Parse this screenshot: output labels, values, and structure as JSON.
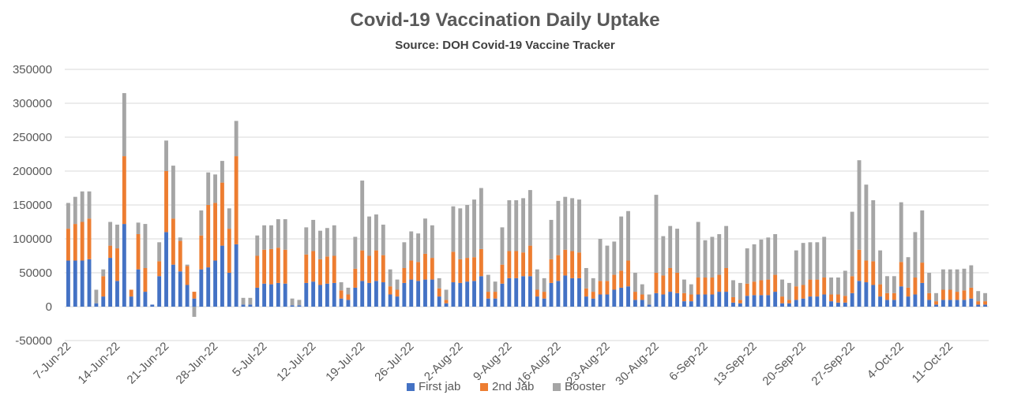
{
  "chart_data": {
    "type": "bar",
    "stacked": true,
    "title": "Covid-19 Vaccination Daily Uptake",
    "subtitle": "Source: DOH Covid-19 Vaccine Tracker",
    "xlabel": "",
    "ylabel": "",
    "ylim": [
      -50000,
      350000
    ],
    "yticks": [
      -50000,
      0,
      50000,
      100000,
      150000,
      200000,
      250000,
      300000,
      350000
    ],
    "ytick_labels": [
      "-50000",
      "0",
      "50000",
      "100000",
      "150000",
      "200000",
      "250000",
      "300000",
      "350000"
    ],
    "grid": true,
    "legend_position": "bottom",
    "x_start": "7-Jun-22",
    "x_end": "17-Oct-22",
    "xtick_labels": [
      "7-Jun-22",
      "14-Jun-22",
      "21-Jun-22",
      "28-Jun-22",
      "5-Jul-22",
      "12-Jul-22",
      "19-Jul-22",
      "26-Jul-22",
      "2-Aug-22",
      "9-Aug-22",
      "16-Aug-22",
      "23-Aug-22",
      "30-Aug-22",
      "6-Sep-22",
      "13-Sep-22",
      "20-Sep-22",
      "27-Sep-22",
      "4-Oct-22",
      "11-Oct-22"
    ],
    "series": [
      {
        "name": "First jab",
        "color": "#4472c4",
        "values": [
          68000,
          68000,
          68000,
          70000,
          5000,
          15000,
          72000,
          38000,
          122000,
          15000,
          55000,
          22000,
          3000,
          45000,
          110000,
          62000,
          52000,
          32000,
          12000,
          55000,
          58000,
          68000,
          90000,
          50000,
          92000,
          3000,
          3000,
          28000,
          34000,
          33000,
          35000,
          34000,
          2000,
          2000,
          35000,
          37000,
          32000,
          34000,
          35000,
          12000,
          10000,
          28000,
          38000,
          35000,
          38000,
          36000,
          18000,
          15000,
          35000,
          40000,
          38000,
          40000,
          40000,
          15000,
          5000,
          36000,
          35000,
          37000,
          38000,
          45000,
          12000,
          12000,
          34000,
          42000,
          42000,
          45000,
          45000,
          15000,
          12000,
          35000,
          38000,
          46000,
          42000,
          42000,
          15000,
          12000,
          18000,
          18000,
          25000,
          28000,
          30000,
          10000,
          10000,
          3000,
          20000,
          18000,
          22000,
          20000,
          8000,
          8000,
          18000,
          18000,
          18000,
          22000,
          22000,
          6000,
          5000,
          16000,
          17000,
          17000,
          17000,
          22000,
          5000,
          5000,
          10000,
          12000,
          15000,
          15000,
          18000,
          8000,
          6000,
          6000,
          20000,
          38000,
          36000,
          32000,
          15000,
          10000,
          10000,
          30000,
          15000,
          18000,
          35000,
          10000,
          3000,
          10000,
          10000,
          10000,
          10000,
          12000,
          3000,
          3000
        ],
        "negative_values": [
          0,
          0,
          0,
          0,
          0,
          0,
          0,
          0,
          0,
          0,
          0,
          0,
          0,
          0,
          0,
          0,
          0,
          0,
          -15000,
          0,
          0,
          0,
          0,
          0,
          0,
          0,
          0,
          0,
          0,
          0,
          0,
          0,
          0,
          0,
          0,
          0,
          0,
          0,
          0,
          0,
          0,
          0,
          0,
          0,
          0,
          0,
          0,
          0,
          0,
          0,
          0,
          0,
          0,
          0,
          0,
          0,
          0,
          0,
          0,
          0,
          0,
          0,
          0,
          0,
          0,
          0,
          0,
          0,
          0,
          0,
          0,
          0,
          0,
          0,
          0,
          0,
          0,
          0,
          0,
          0,
          0,
          0,
          0,
          0,
          0,
          0,
          0,
          0,
          0,
          0,
          0,
          0,
          0,
          0,
          0,
          0,
          0,
          0,
          0,
          0,
          0,
          0,
          0,
          0,
          0,
          0,
          0,
          0,
          0,
          0,
          0,
          0,
          0,
          0,
          0,
          0,
          0,
          0,
          0,
          0,
          0,
          0,
          0,
          0,
          0,
          0,
          0,
          0,
          0,
          0,
          0,
          0
        ]
      },
      {
        "name": "2nd Jab",
        "color": "#ed7d31",
        "values": [
          47000,
          54000,
          57000,
          60000,
          0,
          30000,
          18000,
          48000,
          100000,
          10000,
          52000,
          35000,
          0,
          22000,
          90000,
          68000,
          45000,
          28000,
          10000,
          50000,
          92000,
          85000,
          93000,
          65000,
          130000,
          0,
          0,
          47000,
          50000,
          52000,
          52000,
          50000,
          0,
          0,
          42000,
          45000,
          38000,
          40000,
          40000,
          12000,
          8000,
          28000,
          45000,
          40000,
          45000,
          40000,
          12000,
          10000,
          22000,
          28000,
          28000,
          38000,
          32000,
          12000,
          5000,
          45000,
          35000,
          35000,
          35000,
          40000,
          10000,
          10000,
          28000,
          40000,
          40000,
          35000,
          45000,
          10000,
          10000,
          35000,
          38000,
          38000,
          40000,
          38000,
          12000,
          10000,
          20000,
          20000,
          22000,
          25000,
          38000,
          12000,
          8000,
          0,
          30000,
          28000,
          35000,
          30000,
          12000,
          10000,
          25000,
          25000,
          25000,
          25000,
          35000,
          8000,
          5000,
          18000,
          20000,
          22000,
          23000,
          25000,
          10000,
          5000,
          20000,
          20000,
          25000,
          25000,
          25000,
          10000,
          12000,
          10000,
          25000,
          46000,
          32000,
          35000,
          18000,
          10000,
          10000,
          36000,
          13000,
          25000,
          30000,
          10000,
          5000,
          15000,
          15000,
          12000,
          14000,
          16000,
          5000,
          5000
        ],
        "negative_values": []
      },
      {
        "name": "Booster",
        "color": "#a5a5a5",
        "values": [
          38000,
          40000,
          45000,
          40000,
          20000,
          10000,
          35000,
          35000,
          93000,
          0,
          17000,
          65000,
          0,
          28000,
          45000,
          78000,
          5000,
          2000,
          0,
          37000,
          48000,
          42000,
          32000,
          30000,
          52000,
          10000,
          10000,
          30000,
          36000,
          35000,
          42000,
          45000,
          10000,
          8000,
          40000,
          46000,
          42000,
          42000,
          45000,
          12000,
          10000,
          47000,
          103000,
          58000,
          53000,
          45000,
          25000,
          15000,
          38000,
          43000,
          42000,
          52000,
          48000,
          15000,
          15000,
          67000,
          75000,
          78000,
          85000,
          90000,
          25000,
          15000,
          55000,
          75000,
          75000,
          80000,
          82000,
          30000,
          20000,
          58000,
          80000,
          78000,
          78000,
          78000,
          30000,
          20000,
          62000,
          52000,
          49000,
          80000,
          73000,
          28000,
          15000,
          15000,
          115000,
          58000,
          62000,
          65000,
          20000,
          15000,
          82000,
          55000,
          60000,
          60000,
          62000,
          25000,
          25000,
          52000,
          55000,
          60000,
          62000,
          60000,
          25000,
          25000,
          53000,
          62000,
          55000,
          55000,
          60000,
          25000,
          25000,
          37000,
          95000,
          132000,
          112000,
          90000,
          50000,
          25000,
          25000,
          88000,
          45000,
          67000,
          77000,
          30000,
          12000,
          30000,
          30000,
          33000,
          32000,
          33000,
          15000,
          12000
        ],
        "negative_values": []
      }
    ]
  }
}
